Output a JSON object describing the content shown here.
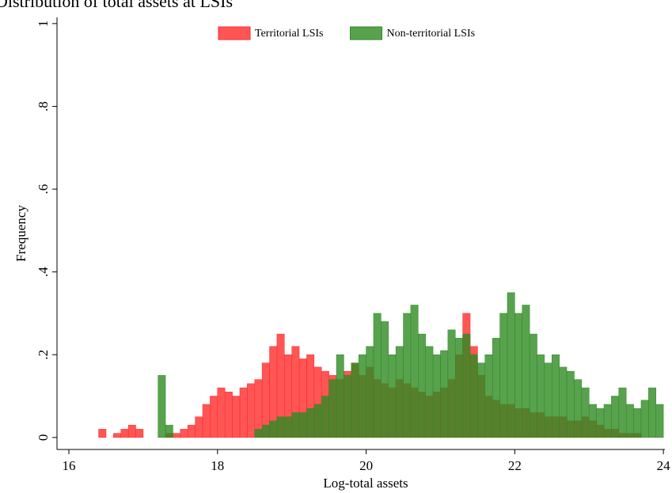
{
  "chart_data": {
    "type": "histogram",
    "title": "Distribution of total assets at LSIs",
    "x_label": "Log-total assets",
    "y_label": "Frequency",
    "xlim": [
      15.84,
      24.02
    ],
    "ylim": [
      -0.029,
      1.015
    ],
    "xticks": [
      16,
      18,
      20,
      22,
      24
    ],
    "yticks": [
      0,
      {
        "value": 0.2,
        "label": ".2"
      },
      {
        "value": 0.4,
        "label": ".4"
      },
      {
        "value": 0.6,
        "label": ".6"
      },
      {
        "value": 0.8,
        "label": ".8"
      },
      1
    ],
    "legend": "top",
    "bins": [
      16.4,
      16.5,
      16.6,
      16.7,
      16.8,
      16.9,
      17.0,
      17.1,
      17.2,
      17.3,
      17.4,
      17.5,
      17.6,
      17.7,
      17.8,
      17.9,
      18.0,
      18.1,
      18.2,
      18.3,
      18.4,
      18.5,
      18.6,
      18.7,
      18.8,
      18.9,
      19.0,
      19.1,
      19.2,
      19.3,
      19.4,
      19.5,
      19.6,
      19.7,
      19.8,
      19.9,
      20.0,
      20.1,
      20.2,
      20.3,
      20.4,
      20.5,
      20.6,
      20.7,
      20.8,
      20.9,
      21.0,
      21.1,
      21.2,
      21.3,
      21.4,
      21.5,
      21.6,
      21.7,
      21.8,
      21.9,
      22.0,
      22.1,
      22.2,
      22.3,
      22.4,
      22.5,
      22.6,
      22.7,
      22.8,
      22.9,
      23.0,
      23.1,
      23.2,
      23.3,
      23.4,
      23.5,
      23.6,
      23.7,
      23.8,
      23.9,
      24.0
    ],
    "series": [
      {
        "name": "Territorial LSIs",
        "color": "#ff2a2a",
        "values": [
          0.02,
          0,
          0.01,
          0.02,
          0.03,
          0.02,
          0,
          0,
          0,
          0.01,
          0.01,
          0.02,
          0.03,
          0.05,
          0.08,
          0.1,
          0.12,
          0.11,
          0.1,
          0.12,
          0.13,
          0.14,
          0.18,
          0.22,
          0.25,
          0.2,
          0.22,
          0.19,
          0.2,
          0.17,
          0.16,
          0.15,
          0.14,
          0.16,
          0.18,
          0.15,
          0.17,
          0.14,
          0.13,
          0.12,
          0.14,
          0.13,
          0.12,
          0.11,
          0.1,
          0.11,
          0.12,
          0.14,
          0.2,
          0.3,
          0.22,
          0.15,
          0.1,
          0.09,
          0.08,
          0.08,
          0.07,
          0.07,
          0.06,
          0.06,
          0.05,
          0.05,
          0.05,
          0.04,
          0.04,
          0.05,
          0.04,
          0.03,
          0.02,
          0.02,
          0.01,
          0.01,
          0.01,
          0,
          0,
          0
        ]
      },
      {
        "name": "Non-territorial LSIs",
        "color": "#2e8b22",
        "values": [
          0,
          0,
          0,
          0,
          0,
          0,
          0,
          0,
          0.15,
          0.03,
          0,
          0,
          0,
          0,
          0,
          0,
          0,
          0,
          0,
          0,
          0,
          0.02,
          0.03,
          0.04,
          0.05,
          0.05,
          0.06,
          0.06,
          0.07,
          0.08,
          0.1,
          0.14,
          0.2,
          0.15,
          0.18,
          0.2,
          0.22,
          0.3,
          0.28,
          0.2,
          0.22,
          0.3,
          0.32,
          0.25,
          0.22,
          0.2,
          0.21,
          0.26,
          0.24,
          0.25,
          0.2,
          0.18,
          0.2,
          0.24,
          0.3,
          0.35,
          0.3,
          0.32,
          0.25,
          0.2,
          0.18,
          0.2,
          0.17,
          0.16,
          0.14,
          0.12,
          0.08,
          0.07,
          0.08,
          0.1,
          0.12,
          0.08,
          0.07,
          0.09,
          0.12,
          0.08
        ]
      }
    ]
  }
}
